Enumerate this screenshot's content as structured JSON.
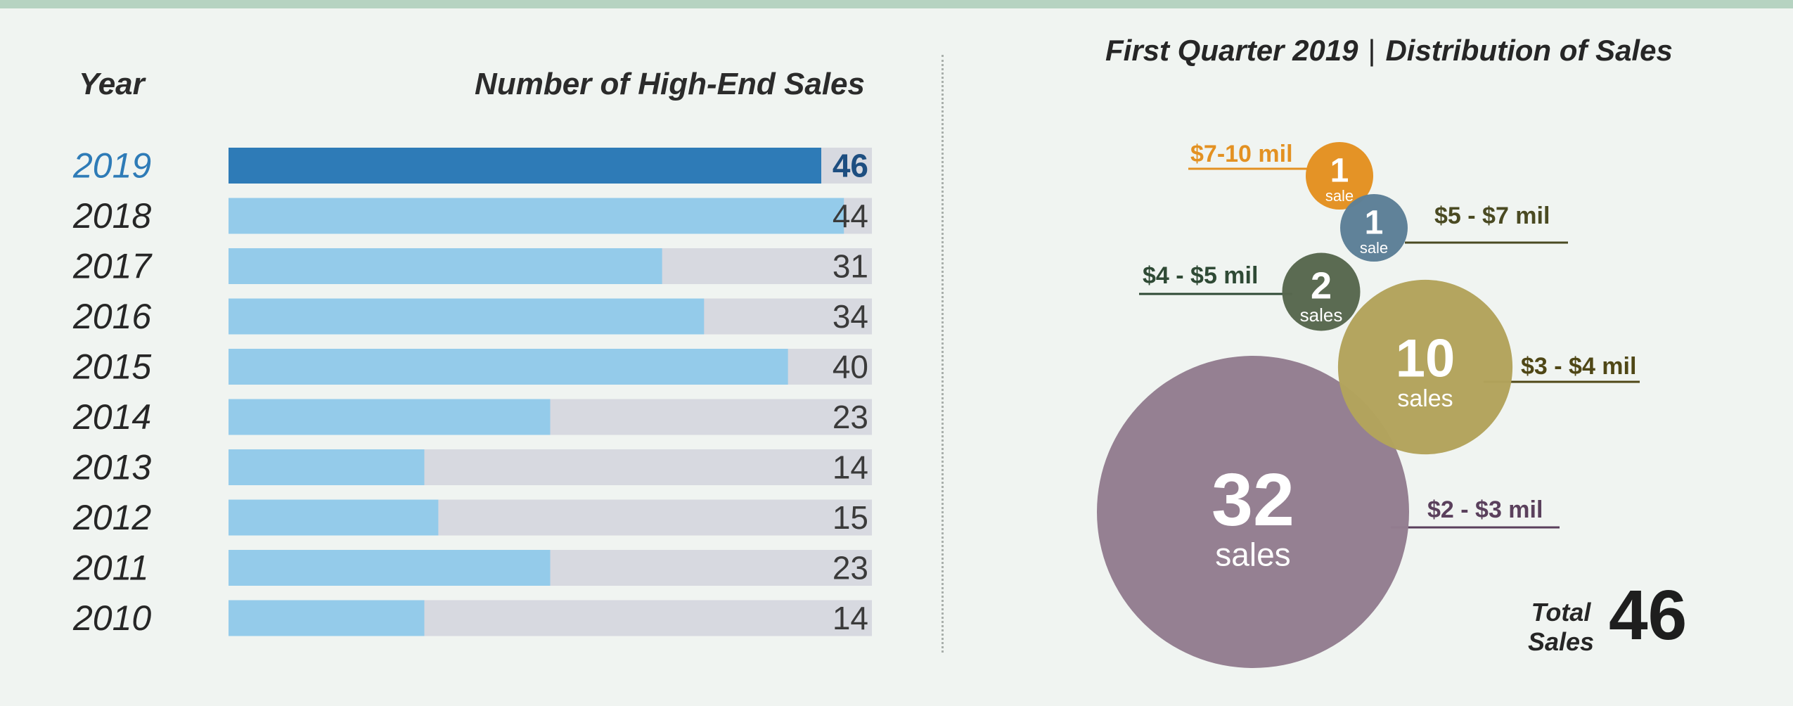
{
  "chart_data": [
    {
      "type": "bar",
      "orientation": "horizontal",
      "xlabel": "Number of High-End Sales",
      "ylabel": "Year",
      "categories": [
        "2019",
        "2018",
        "2017",
        "2016",
        "2015",
        "2014",
        "2013",
        "2012",
        "2011",
        "2010"
      ],
      "values": [
        46,
        44,
        31,
        34,
        40,
        23,
        14,
        15,
        23,
        14
      ],
      "xlim": [
        0,
        46
      ],
      "highlight_category": "2019",
      "colors": {
        "highlight": "#2e7bb7",
        "bar": "#94cbea",
        "track": "#d7d9e0",
        "highlight_label": "#1d4e80",
        "label": "#3a3a3a",
        "highlight_year": "#2e7bb7",
        "year": "#262626"
      },
      "grid": false
    },
    {
      "type": "bubble",
      "title_left": "First Quarter 2019",
      "title_separator": "|",
      "title_right": "Distribution of Sales",
      "series": [
        {
          "name": "$7-10 mil",
          "count": "1",
          "unit": "sale",
          "value": 1,
          "color": "#e39122",
          "label_color": "#e39122"
        },
        {
          "name": "$5 - $7 mil",
          "count": "1",
          "unit": "sale",
          "value": 1,
          "color": "#5d7f97",
          "label_color": "#4a4a22"
        },
        {
          "name": "$4 - $5 mil",
          "count": "2",
          "unit": "sales",
          "value": 2,
          "color": "#58684f",
          "label_color": "#2f4a35"
        },
        {
          "name": "$3 - $4 mil",
          "count": "10",
          "unit": "sales",
          "value": 10,
          "color": "#b2a35c",
          "label_color": "#4f4716"
        },
        {
          "name": "$2 - $3 mil",
          "count": "32",
          "unit": "sales",
          "value": 32,
          "color": "#937d90",
          "label_color": "#5a405c"
        }
      ],
      "total_label_line1": "Total",
      "total_label_line2": "Sales",
      "total_value": "46"
    }
  ]
}
